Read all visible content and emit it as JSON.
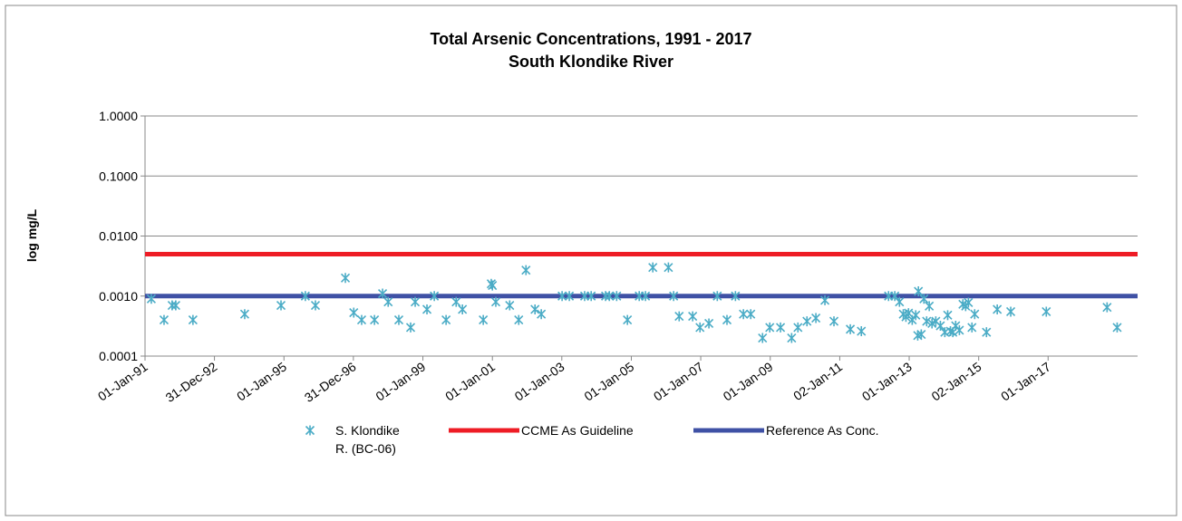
{
  "chart_data": {
    "type": "scatter",
    "title": "Total Arsenic Concentrations, 1991 - 2017",
    "subtitle": "South Klondike River",
    "y_label": "log mg/L",
    "log_y": true,
    "grid": true,
    "legend": "bottom",
    "xlim": [
      "1991-01-01",
      "2019-07-31"
    ],
    "xticks": [
      {
        "value": "1991-01-01",
        "label": "01-Jan-91"
      },
      {
        "value": "1992-12-31",
        "label": "31-Dec-92"
      },
      {
        "value": "1995-01-01",
        "label": "01-Jan-95"
      },
      {
        "value": "1996-12-31",
        "label": "31-Dec-96"
      },
      {
        "value": "1999-01-01",
        "label": "01-Jan-99"
      },
      {
        "value": "2001-01-01",
        "label": "01-Jan-01"
      },
      {
        "value": "2003-01-01",
        "label": "01-Jan-03"
      },
      {
        "value": "2005-01-01",
        "label": "01-Jan-05"
      },
      {
        "value": "2007-01-01",
        "label": "01-Jan-07"
      },
      {
        "value": "2009-01-01",
        "label": "01-Jan-09"
      },
      {
        "value": "2011-01-02",
        "label": "02-Jan-11"
      },
      {
        "value": "2013-01-01",
        "label": "01-Jan-13"
      },
      {
        "value": "2015-01-02",
        "label": "02-Jan-15"
      },
      {
        "value": "2017-01-01",
        "label": "01-Jan-17"
      }
    ],
    "ylim": [
      0.0001,
      1
    ],
    "yticks": [
      {
        "value": 0.0001,
        "label": "0.0001"
      },
      {
        "value": 0.001,
        "label": "0.0010"
      },
      {
        "value": 0.01,
        "label": "0.0100"
      },
      {
        "value": 0.1,
        "label": "0.1000"
      },
      {
        "value": 1,
        "label": "1.0000"
      }
    ],
    "series": [
      {
        "name": "S. Klondike R. (BC-06)",
        "color": "#4bacc6",
        "x": [
          "1991-03-08",
          "1991-07-20",
          "1991-10-13",
          "1991-11-20",
          "1992-05-19",
          "1993-11-14",
          "1994-12-01",
          "1995-08-14",
          "1995-11-28",
          "1996-10-08",
          "1997-01-04",
          "1997-03-28",
          "1997-08-10",
          "1997-11-03",
          "1998-01-01",
          "1998-04-23",
          "1998-08-25",
          "1998-10-12",
          "1999-02-13",
          "1999-05-01",
          "1999-09-02",
          "1999-12-17",
          "2000-02-21",
          "2000-09-27",
          "2000-12-20",
          "2001-01-01",
          "2001-02-06",
          "2001-07-02",
          "2001-10-05",
          "2001-12-20",
          "2002-03-25",
          "2002-05-30",
          "2003-01-04",
          "2003-03-21",
          "2003-08-29",
          "2003-11-06",
          "2004-04-05",
          "2004-05-15",
          "2004-07-31",
          "2004-11-21",
          "2005-03-25",
          "2005-05-30",
          "2005-08-15",
          "2006-01-26",
          "2006-03-22",
          "2006-05-19",
          "2006-10-08",
          "2006-12-24",
          "2007-03-28",
          "2007-06-24",
          "2007-10-04",
          "2008-01-01",
          "2008-03-25",
          "2008-06-10",
          "2008-10-12",
          "2008-12-27",
          "2009-04-19",
          "2009-08-14",
          "2009-10-19",
          "2010-01-22",
          "2010-04-26",
          "2010-07-30",
          "2010-11-02",
          "2011-04-23",
          "2011-08-17",
          "2012-05-29",
          "2012-08-03",
          "2012-09-21",
          "2012-10-31",
          "2012-11-28",
          "2012-12-25",
          "2013-02-02",
          "2013-03-11",
          "2013-04-01",
          "2013-04-08",
          "2013-05-08",
          "2013-06-05",
          "2013-07-04",
          "2013-07-31",
          "2013-08-29",
          "2013-10-08",
          "2013-11-25",
          "2014-01-11",
          "2014-02-10",
          "2014-03-11",
          "2014-04-05",
          "2014-05-05",
          "2014-06-13",
          "2014-07-20",
          "2014-08-18",
          "2014-09-16",
          "2014-10-23",
          "2014-11-21",
          "2015-03-25",
          "2015-07-16",
          "2015-12-05",
          "2016-12-13",
          "2018-09-13",
          "2018-12-28"
        ],
        "values": [
          0.0009,
          0.0004,
          0.0007,
          0.0007,
          0.0004,
          0.0005,
          0.0007,
          0.001,
          0.0007,
          0.002,
          0.00053,
          0.0004,
          0.0004,
          0.0011,
          0.0008,
          0.0004,
          0.0003,
          0.0008,
          0.0006,
          0.001,
          0.0004,
          0.0008,
          0.0006,
          0.0004,
          0.0016,
          0.0015,
          0.0008,
          0.0007,
          0.0004,
          0.0027,
          0.0006,
          0.0005,
          0.001,
          0.001,
          0.001,
          0.001,
          0.001,
          0.001,
          0.001,
          0.0004,
          0.001,
          0.001,
          0.003,
          0.003,
          0.001,
          0.00046,
          0.00046,
          0.0003,
          0.00035,
          0.001,
          0.0004,
          0.001,
          0.0005,
          0.0005,
          0.0002,
          0.0003,
          0.0003,
          0.0002,
          0.0003,
          0.00038,
          0.00043,
          0.00085,
          0.00038,
          0.00028,
          0.00026,
          0.001,
          0.001,
          0.0008,
          0.0005,
          0.00045,
          0.00052,
          0.0004,
          0.00048,
          0.00022,
          0.0012,
          0.00023,
          0.0009,
          0.00038,
          0.00068,
          0.00035,
          0.00038,
          0.00032,
          0.00025,
          0.00048,
          0.00026,
          0.00025,
          0.00032,
          0.00027,
          0.00073,
          0.00068,
          0.00078,
          0.0003,
          0.0005,
          0.00025,
          0.0006,
          0.00055,
          0.00055,
          0.00065,
          0.0003
        ]
      }
    ],
    "reference_lines": [
      {
        "name": "CCME As Guideline",
        "color": "#ee1c25",
        "value": 0.005
      },
      {
        "name": "Reference As Conc.",
        "color": "#3f51a5",
        "value": 0.001
      }
    ]
  }
}
